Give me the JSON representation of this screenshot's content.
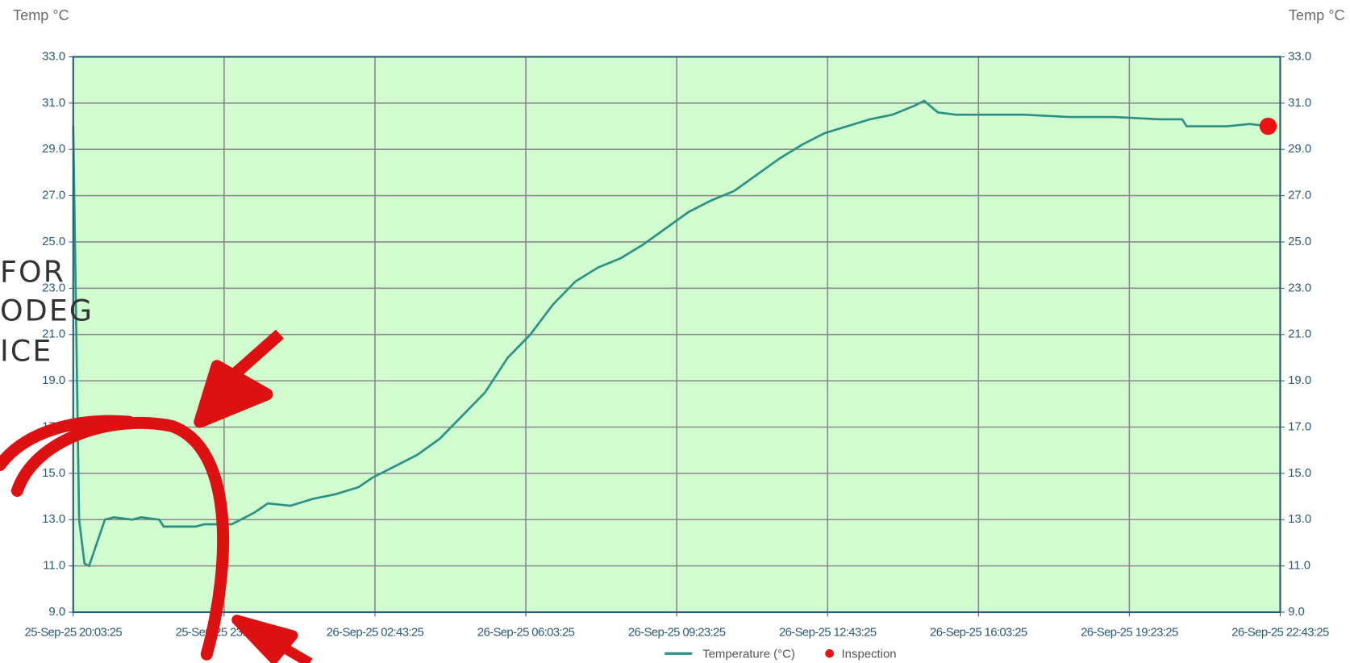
{
  "chart_data": {
    "type": "line",
    "y_axis_title": "Temp °C",
    "y2_axis_title": "Temp °C",
    "xlim": [
      0,
      26.6667
    ],
    "xticks": [
      {
        "value": 0,
        "label": "25-Sep-25 20:03:25"
      },
      {
        "value": 3.3333,
        "label": "25-Sep-25 23:23:25"
      },
      {
        "value": 6.6667,
        "label": "26-Sep-25 02:43:25"
      },
      {
        "value": 10,
        "label": "26-Sep-25 06:03:25"
      },
      {
        "value": 13.3333,
        "label": "26-Sep-25 09:23:25"
      },
      {
        "value": 16.6667,
        "label": "26-Sep-25 12:43:25"
      },
      {
        "value": 20,
        "label": "26-Sep-25 16:03:25"
      },
      {
        "value": 23.3333,
        "label": "26-Sep-25 19:23:25"
      },
      {
        "value": 26.6667,
        "label": "26-Sep-25 22:43:25"
      }
    ],
    "ylim": [
      9,
      33
    ],
    "yticks": [
      {
        "value": 9,
        "label": "9.0"
      },
      {
        "value": 11,
        "label": "11.0"
      },
      {
        "value": 13,
        "label": "13.0"
      },
      {
        "value": 15,
        "label": "15.0"
      },
      {
        "value": 17,
        "label": "17.0"
      },
      {
        "value": 19,
        "label": "19.0"
      },
      {
        "value": 21,
        "label": "21.0"
      },
      {
        "value": 23,
        "label": "23.0"
      },
      {
        "value": 25,
        "label": "25.0"
      },
      {
        "value": 27,
        "label": "27.0"
      },
      {
        "value": 29,
        "label": "29.0"
      },
      {
        "value": 31,
        "label": "31.0"
      },
      {
        "value": 33,
        "label": "33.0"
      }
    ],
    "grid": true,
    "series": [
      {
        "name": "Temperature (°C)",
        "color": "#2a9184",
        "style": "line",
        "x": [
          0,
          0.13,
          0.25,
          0.35,
          0.7,
          0.9,
          1.3,
          1.5,
          1.9,
          2.0,
          2.7,
          2.9,
          3.5,
          3.7,
          4.0,
          4.3,
          4.8,
          5.3,
          5.8,
          6.3,
          6.6,
          7.1,
          7.6,
          8.1,
          8.6,
          9.1,
          9.6,
          10.1,
          10.6,
          11.1,
          11.6,
          12.1,
          12.6,
          13.1,
          13.6,
          14.1,
          14.6,
          15.1,
          15.6,
          16.1,
          16.6,
          17.1,
          17.6,
          18.1,
          18.6,
          18.8,
          19.1,
          19.5,
          20,
          21,
          22,
          23,
          24,
          24.5,
          24.6,
          25.5,
          26.0,
          26.4
        ],
        "values": [
          30.0,
          13.0,
          11.1,
          11.0,
          13.0,
          13.1,
          13.0,
          13.1,
          13.0,
          12.7,
          12.7,
          12.8,
          12.8,
          13.0,
          13.3,
          13.7,
          13.6,
          13.9,
          14.1,
          14.4,
          14.8,
          15.3,
          15.8,
          16.5,
          17.5,
          18.5,
          20.0,
          21.0,
          22.3,
          23.3,
          23.9,
          24.3,
          24.9,
          25.6,
          26.3,
          26.8,
          27.2,
          27.9,
          28.6,
          29.2,
          29.7,
          30.0,
          30.3,
          30.5,
          30.9,
          31.1,
          30.6,
          30.5,
          30.5,
          30.5,
          30.4,
          30.4,
          30.3,
          30.3,
          30.0,
          30.0,
          30.1,
          30.0
        ]
      },
      {
        "name": "Inspection",
        "color": "#ee1111",
        "style": "point",
        "x": [
          26.4
        ],
        "values": [
          30.0
        ]
      }
    ],
    "overlay_text": [
      "FOR",
      "ODEG",
      "ICE"
    ]
  }
}
